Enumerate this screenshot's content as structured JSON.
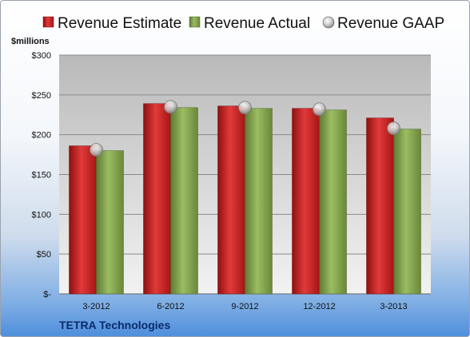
{
  "chart_data": {
    "type": "bar",
    "title": "",
    "ylabel": "$millions",
    "xlabel": "",
    "company": "TETRA Technologies",
    "categories": [
      "3-2012",
      "6-2012",
      "9-2012",
      "12-2012",
      "3-2013"
    ],
    "series": [
      {
        "name": "Revenue Estimate",
        "values": [
          186,
          239,
          236,
          233,
          221
        ],
        "color": "#cc1f1f",
        "kind": "bar"
      },
      {
        "name": "Revenue Actual",
        "values": [
          180,
          234,
          233,
          231,
          207
        ],
        "color": "#8cab52",
        "kind": "bar"
      },
      {
        "name": "Revenue GAAP",
        "values": [
          181,
          235,
          234,
          232,
          208
        ],
        "color": "#c0c0c0",
        "kind": "marker"
      }
    ],
    "ylim": [
      0,
      300
    ],
    "yticks": [
      0,
      50,
      100,
      150,
      200,
      250,
      300
    ],
    "ytick_labels": [
      "$-",
      "$50",
      "$100",
      "$150",
      "$200",
      "$250",
      "$300"
    ],
    "grid": true,
    "legend": "top"
  }
}
